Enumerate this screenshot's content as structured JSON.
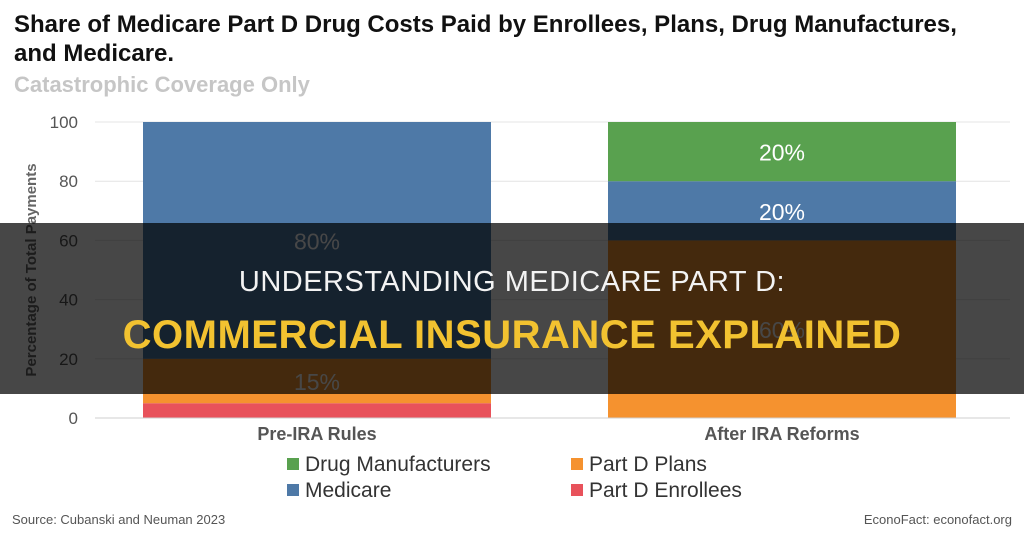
{
  "header": {
    "title": "Share of Medicare Part D Drug Costs Paid by Enrollees, Plans, Drug Manufactures, and Medicare.",
    "subtitle": "Catastrophic Coverage Only"
  },
  "overlay": {
    "line1": "UNDERSTANDING MEDICARE PART D:",
    "line2": "COMMERCIAL INSURANCE EXPLAINED",
    "line2_color": "#f2c230"
  },
  "footer": {
    "source": "Source: Cubanski and Neuman 2023",
    "credit": "EconoFact: econofact.org"
  },
  "chart_data": {
    "type": "bar",
    "stacked": true,
    "categories": [
      "Pre-IRA Rules",
      "After IRA Reforms"
    ],
    "series": [
      {
        "name": "Part D Enrollees",
        "color": "#e8525b",
        "values": [
          5,
          0
        ],
        "labels": [
          "",
          ""
        ]
      },
      {
        "name": "Part D Plans",
        "color": "#f5922f",
        "values": [
          15,
          60
        ],
        "labels": [
          "15%",
          "60%"
        ]
      },
      {
        "name": "Medicare",
        "color": "#4e79a7",
        "values": [
          80,
          20
        ],
        "labels": [
          "80%",
          "20%"
        ]
      },
      {
        "name": "Drug Manufacturers",
        "color": "#59a14f",
        "values": [
          0,
          20
        ],
        "labels": [
          "",
          "20%"
        ]
      }
    ],
    "legend_order": [
      "Drug Manufacturers",
      "Part D Plans",
      "Medicare",
      "Part D Enrollees"
    ],
    "legend_placement": "bottom",
    "ylabel": "Percentage of Total Payments",
    "ylim": [
      0,
      100
    ],
    "yticks": [
      0,
      20,
      40,
      60,
      80,
      100
    ],
    "grid": true
  }
}
